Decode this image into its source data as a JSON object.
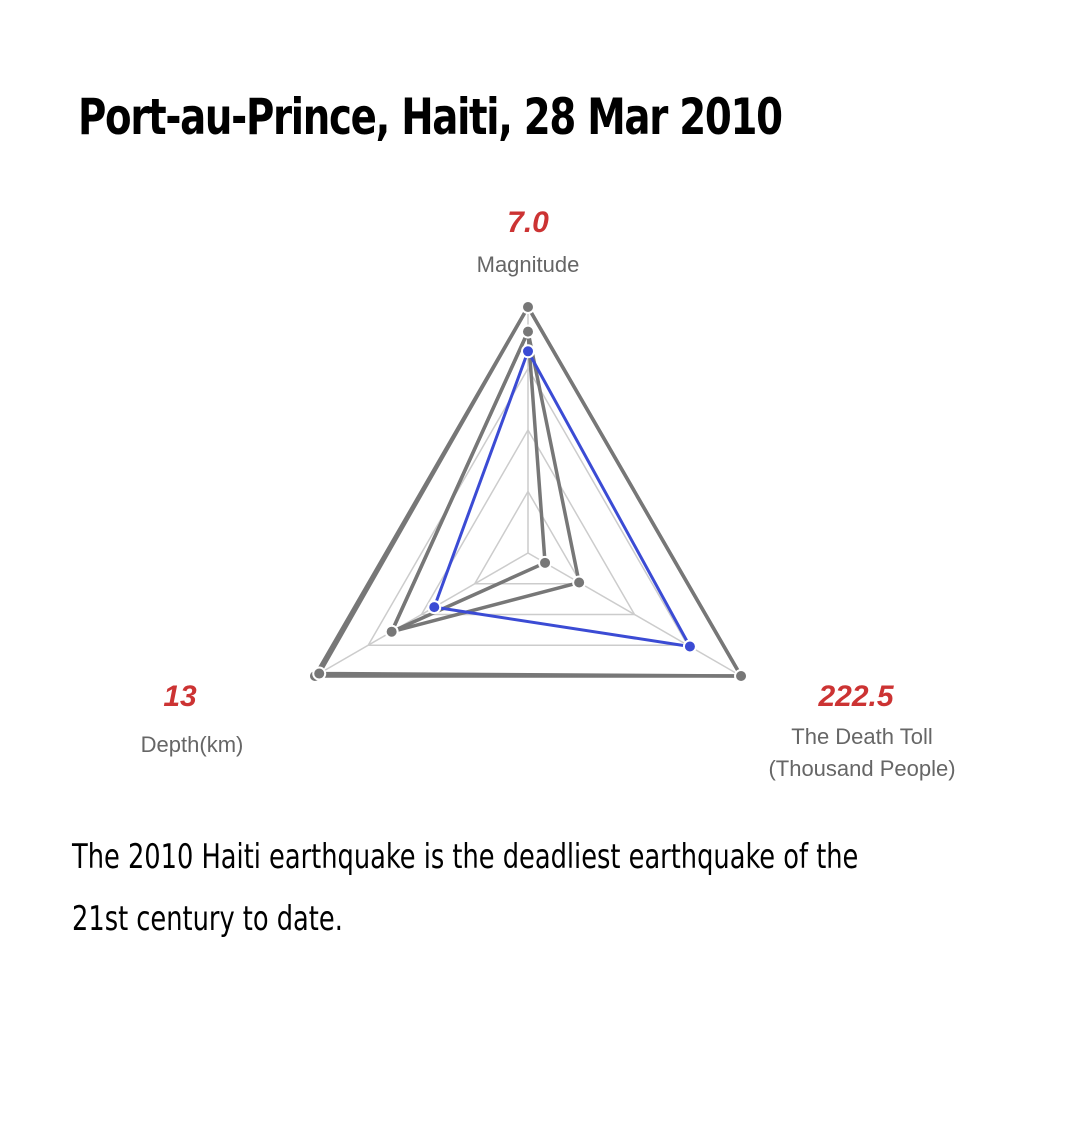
{
  "title": "Port-au-Prince, Haiti, 28 Mar 2010",
  "description": "The 2010 Haiti earthquake is the deadliest earthquake of the 21st century to date.",
  "chart_data": {
    "type": "radar",
    "axes": [
      {
        "value_label": "7.0",
        "label_lines": [
          "Magnitude"
        ]
      },
      {
        "value_label": "222.5",
        "label_lines": [
          "The Death Toll",
          "(Thousand People)"
        ]
      },
      {
        "value_label": "13",
        "label_lines": [
          "Depth(km)"
        ]
      }
    ],
    "levels": [
      0.25,
      0.5,
      0.75,
      1.0
    ],
    "grid": true,
    "series": [
      {
        "values": [
          1.0,
          1.0,
          1.0
        ],
        "color": "#777777"
      },
      {
        "values": [
          1.0,
          1.0,
          0.98
        ],
        "color": "#777777"
      },
      {
        "values": [
          0.9,
          0.08,
          0.64
        ],
        "color": "#777777"
      },
      {
        "values": [
          0.9,
          0.24,
          0.64
        ],
        "color": "#777777"
      },
      {
        "values": [
          0.82,
          0.76,
          0.44
        ],
        "color": "#3b4bd4",
        "highlight": true
      }
    ],
    "colors": {
      "value_label": "#cc3333",
      "highlight": "#3b4bd4",
      "other": "#777777",
      "grid": "#cccccc"
    }
  }
}
